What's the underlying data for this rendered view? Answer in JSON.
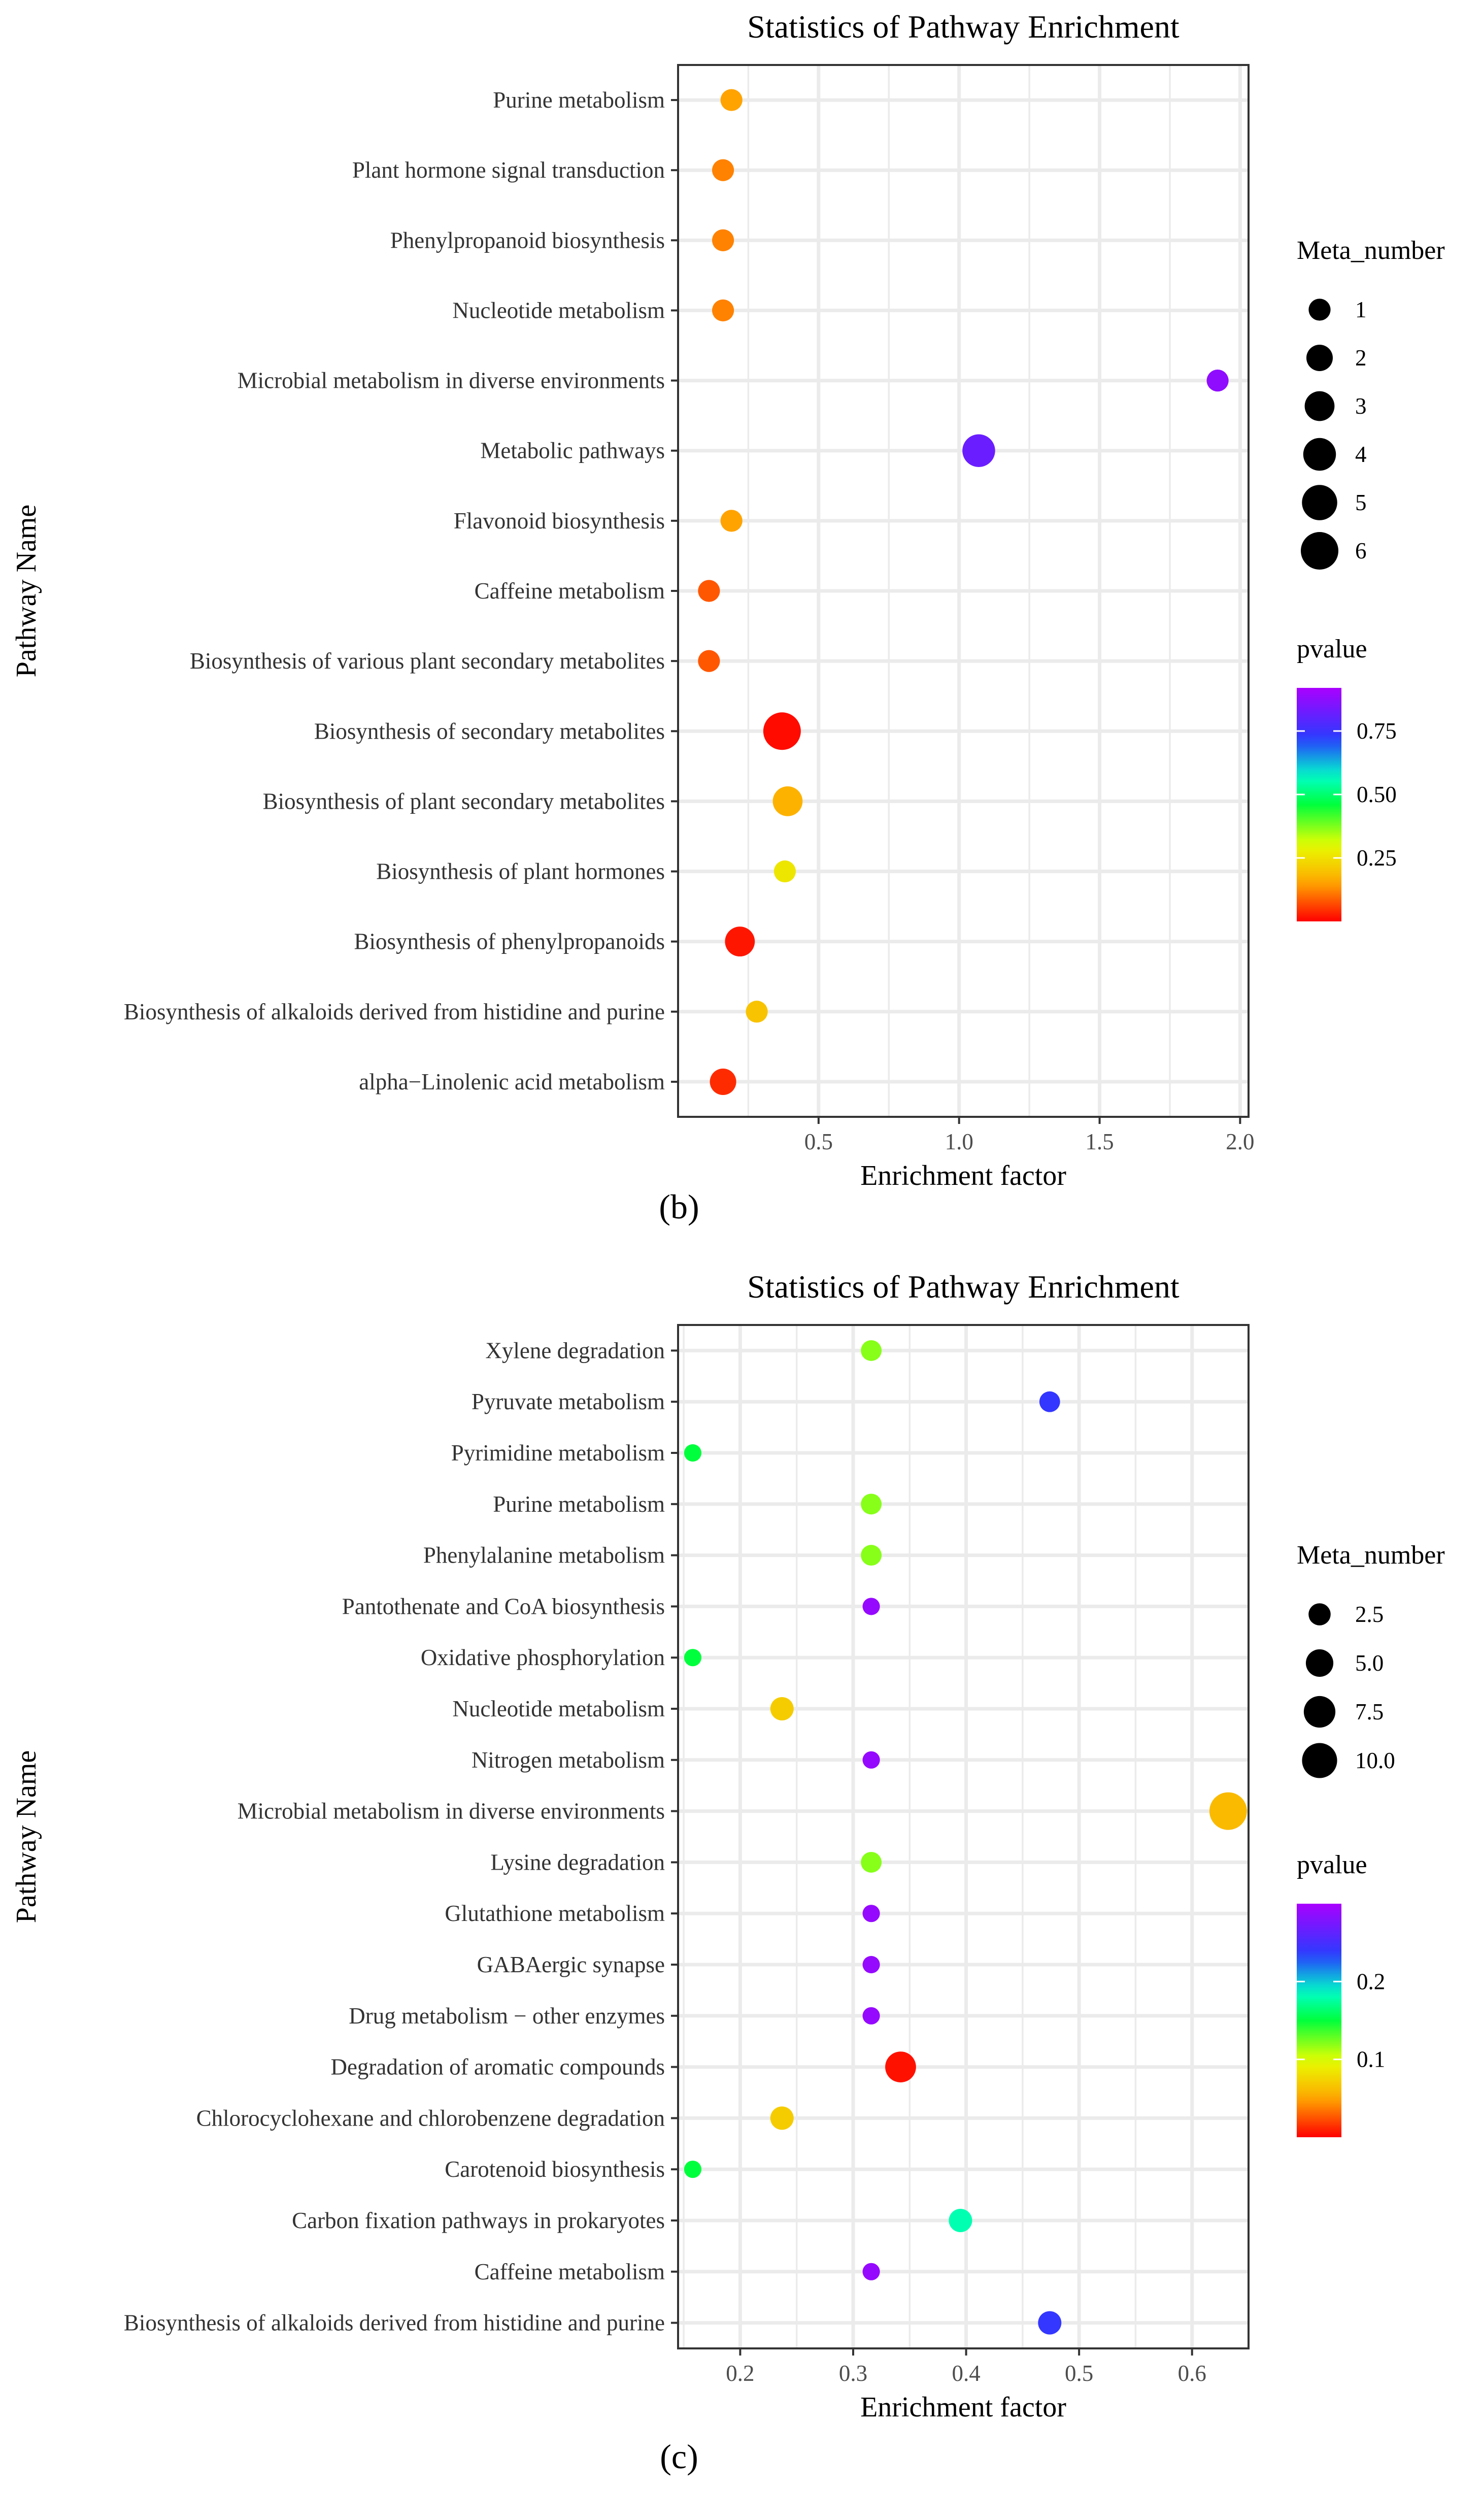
{
  "chart_data": [
    {
      "type": "scatter",
      "panel_label": "(b)",
      "title": "Statistics of Pathway Enrichment",
      "xlabel": "Enrichment factor",
      "ylabel": "Pathway Name",
      "xlim": [
        0.0,
        2.03
      ],
      "xticks": [
        "0.5",
        "1.0",
        "1.5",
        "2.0"
      ],
      "xtick_values": [
        0.5,
        1.0,
        1.5,
        2.0
      ],
      "grid": true,
      "categories": [
        "Purine metabolism",
        "Plant hormone signal transduction",
        "Phenylpropanoid biosynthesis",
        "Nucleotide metabolism",
        "Microbial metabolism in diverse environments",
        "Metabolic pathways",
        "Flavonoid biosynthesis",
        "Caffeine metabolism",
        "Biosynthesis of various plant secondary metabolites",
        "Biosynthesis of secondary metabolites",
        "Biosynthesis of plant secondary metabolites",
        "Biosynthesis of plant hormones",
        "Biosynthesis of phenylpropanoids",
        "Biosynthesis of alkaloids derived from histidine and purine",
        "alpha−Linolenic acid metabolism"
      ],
      "points": [
        {
          "enrichment": 0.19,
          "meta_number": 1,
          "pvalue": 0.15
        },
        {
          "enrichment": 0.16,
          "meta_number": 1,
          "pvalue": 0.12
        },
        {
          "enrichment": 0.16,
          "meta_number": 1,
          "pvalue": 0.12
        },
        {
          "enrichment": 0.16,
          "meta_number": 1,
          "pvalue": 0.12
        },
        {
          "enrichment": 1.92,
          "meta_number": 1,
          "pvalue": 0.88
        },
        {
          "enrichment": 1.07,
          "meta_number": 4,
          "pvalue": 0.82
        },
        {
          "enrichment": 0.19,
          "meta_number": 1,
          "pvalue": 0.15
        },
        {
          "enrichment": 0.11,
          "meta_number": 1,
          "pvalue": 0.08
        },
        {
          "enrichment": 0.11,
          "meta_number": 1,
          "pvalue": 0.08
        },
        {
          "enrichment": 0.37,
          "meta_number": 6,
          "pvalue": 0.01
        },
        {
          "enrichment": 0.39,
          "meta_number": 3,
          "pvalue": 0.17
        },
        {
          "enrichment": 0.38,
          "meta_number": 1,
          "pvalue": 0.26
        },
        {
          "enrichment": 0.22,
          "meta_number": 3,
          "pvalue": 0.02
        },
        {
          "enrichment": 0.28,
          "meta_number": 1,
          "pvalue": 0.2
        },
        {
          "enrichment": 0.16,
          "meta_number": 2,
          "pvalue": 0.04
        }
      ],
      "size_legend": {
        "title": "Meta_number",
        "labels": [
          "1",
          "2",
          "3",
          "4",
          "5",
          "6"
        ],
        "values": [
          1,
          2,
          3,
          4,
          5,
          6
        ]
      },
      "color_legend": {
        "title": "pvalue",
        "labels": [
          "0.75",
          "0.50",
          "0.25"
        ],
        "values": [
          0.75,
          0.5,
          0.25
        ],
        "range": [
          0.0,
          0.92
        ]
      }
    },
    {
      "type": "scatter",
      "panel_label": "(c)",
      "title": "Statistics of Pathway Enrichment",
      "xlabel": "Enrichment factor",
      "ylabel": "Pathway Name",
      "xlim": [
        0.145,
        0.65
      ],
      "xticks": [
        "0.2",
        "0.3",
        "0.4",
        "0.5",
        "0.6"
      ],
      "xtick_values": [
        0.2,
        0.3,
        0.4,
        0.5,
        0.6
      ],
      "grid": true,
      "categories": [
        "Xylene degradation",
        "Pyruvate metabolism",
        "Pyrimidine metabolism",
        "Purine metabolism",
        "Phenylalanine metabolism",
        "Pantothenate and CoA biosynthesis",
        "Oxidative phosphorylation",
        "Nucleotide metabolism",
        "Nitrogen metabolism",
        "Microbial metabolism in diverse environments",
        "Lysine degradation",
        "Glutathione metabolism",
        "GABAergic synapse",
        "Drug metabolism − other enzymes",
        "Degradation of aromatic compounds",
        "Chlorocyclohexane and chlorobenzene degradation",
        "Carotenoid biosynthesis",
        "Carbon fixation pathways in prokaryotes",
        "Caffeine metabolism",
        "Biosynthesis of alkaloids derived from histidine and purine"
      ],
      "points": [
        {
          "enrichment": 0.316,
          "meta_number": 2,
          "pvalue": 0.12
        },
        {
          "enrichment": 0.474,
          "meta_number": 2,
          "pvalue": 0.24
        },
        {
          "enrichment": 0.158,
          "meta_number": 1,
          "pvalue": 0.15
        },
        {
          "enrichment": 0.316,
          "meta_number": 2,
          "pvalue": 0.12
        },
        {
          "enrichment": 0.316,
          "meta_number": 2,
          "pvalue": 0.12
        },
        {
          "enrichment": 0.316,
          "meta_number": 1,
          "pvalue": 0.29
        },
        {
          "enrichment": 0.158,
          "meta_number": 1,
          "pvalue": 0.15
        },
        {
          "enrichment": 0.237,
          "meta_number": 3,
          "pvalue": 0.07
        },
        {
          "enrichment": 0.316,
          "meta_number": 1,
          "pvalue": 0.29
        },
        {
          "enrichment": 0.632,
          "meta_number": 12,
          "pvalue": 0.06
        },
        {
          "enrichment": 0.316,
          "meta_number": 2,
          "pvalue": 0.12
        },
        {
          "enrichment": 0.316,
          "meta_number": 1,
          "pvalue": 0.29
        },
        {
          "enrichment": 0.316,
          "meta_number": 1,
          "pvalue": 0.29
        },
        {
          "enrichment": 0.316,
          "meta_number": 1,
          "pvalue": 0.29
        },
        {
          "enrichment": 0.342,
          "meta_number": 7,
          "pvalue": 0.005
        },
        {
          "enrichment": 0.237,
          "meta_number": 3,
          "pvalue": 0.07
        },
        {
          "enrichment": 0.158,
          "meta_number": 1,
          "pvalue": 0.15
        },
        {
          "enrichment": 0.395,
          "meta_number": 3,
          "pvalue": 0.18
        },
        {
          "enrichment": 0.316,
          "meta_number": 1,
          "pvalue": 0.29
        },
        {
          "enrichment": 0.474,
          "meta_number": 3,
          "pvalue": 0.24
        }
      ],
      "size_legend": {
        "title": "Meta_number",
        "labels": [
          "2.5",
          "5.0",
          "7.5",
          "10.0"
        ],
        "values": [
          2.5,
          5.0,
          7.5,
          10.0
        ]
      },
      "color_legend": {
        "title": "pvalue",
        "labels": [
          "0.2",
          "0.1"
        ],
        "values": [
          0.2,
          0.1
        ],
        "range": [
          0.0,
          0.3
        ]
      }
    }
  ]
}
